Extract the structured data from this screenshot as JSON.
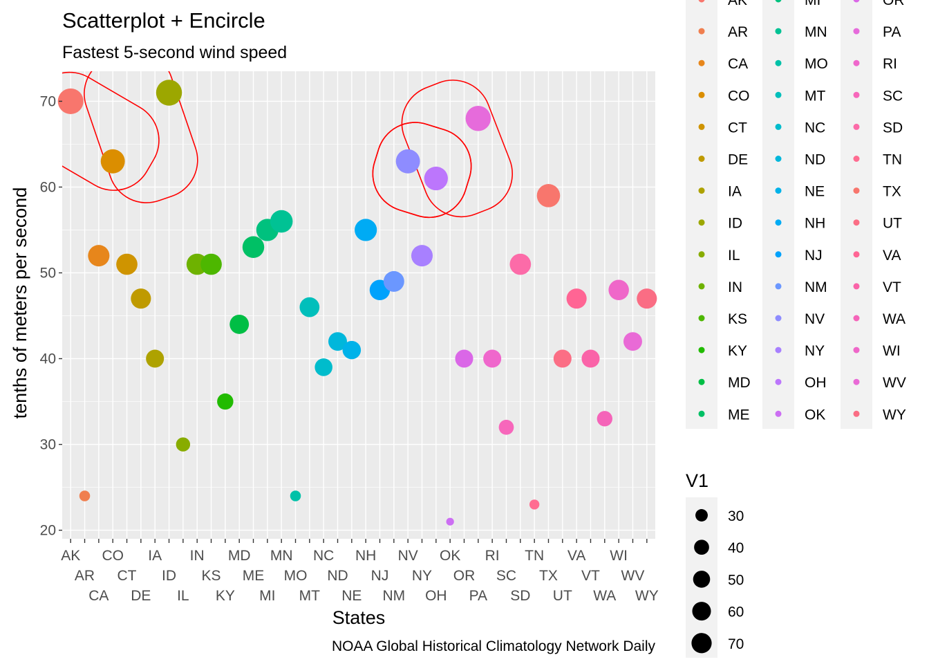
{
  "chart_data": {
    "type": "scatter",
    "title": "Scatterplot + Encircle",
    "subtitle": "Fastest 5-second wind speed",
    "xlabel": "States",
    "ylabel": "tenths of meters per second",
    "caption": "NOAA Global Historical Climatology Network Daily",
    "ylim": [
      19,
      73.5
    ],
    "yticks": [
      20,
      30,
      40,
      50,
      60,
      70
    ],
    "grid": true,
    "categories": [
      "AK",
      "AR",
      "CA",
      "CO",
      "CT",
      "DE",
      "IA",
      "ID",
      "IL",
      "IN",
      "KS",
      "KY",
      "MD",
      "ME",
      "MI",
      "MN",
      "MO",
      "MT",
      "NC",
      "ND",
      "NE",
      "NH",
      "NJ",
      "NM",
      "NV",
      "NY",
      "OH",
      "OK",
      "OR",
      "PA",
      "RI",
      "SC",
      "SD",
      "TN",
      "TX",
      "UT",
      "VA",
      "VT",
      "WA",
      "WI",
      "WV",
      "WY"
    ],
    "colors": [
      "#F8766D",
      "#F07F4F",
      "#E7861B",
      "#DB8E00",
      "#CF9400",
      "#BF9A00",
      "#AEA200",
      "#9CA700",
      "#88AC00",
      "#6EB200",
      "#4DB700",
      "#21BB00",
      "#00BE45",
      "#00C065",
      "#00C17E",
      "#00C294",
      "#00C1A8",
      "#00BFBB",
      "#00BCCC",
      "#00B7DB",
      "#00B2E9",
      "#00ABF4",
      "#00A2FC",
      "#6B97FF",
      "#8E8CFF",
      "#A880FF",
      "#BC76FC",
      "#CC6EF3",
      "#DA67E7",
      "#E66BDB",
      "#EF67CC",
      "#F767BB",
      "#FC6BA8",
      "#FF6C91",
      "#F8766D",
      "#FB6E85",
      "#FF6594",
      "#FA63A8",
      "#F564B9",
      "#EF67C9",
      "#E96AD6",
      "#FA6D84"
    ],
    "points": [
      {
        "state": "AK",
        "y": 70
      },
      {
        "state": "AR",
        "y": 24
      },
      {
        "state": "CA",
        "y": 52
      },
      {
        "state": "CO",
        "y": 63
      },
      {
        "state": "CT",
        "y": 51
      },
      {
        "state": "DE",
        "y": 47
      },
      {
        "state": "IA",
        "y": 40
      },
      {
        "state": "ID",
        "y": 71
      },
      {
        "state": "IL",
        "y": 30
      },
      {
        "state": "IN",
        "y": 51
      },
      {
        "state": "KS",
        "y": 51
      },
      {
        "state": "KY",
        "y": 35
      },
      {
        "state": "MD",
        "y": 44
      },
      {
        "state": "ME",
        "y": 53
      },
      {
        "state": "MI",
        "y": 55
      },
      {
        "state": "MN",
        "y": 56
      },
      {
        "state": "MO",
        "y": 24
      },
      {
        "state": "MT",
        "y": 46
      },
      {
        "state": "NC",
        "y": 39
      },
      {
        "state": "ND",
        "y": 42
      },
      {
        "state": "NE",
        "y": 41
      },
      {
        "state": "NH",
        "y": 55
      },
      {
        "state": "NJ",
        "y": 48
      },
      {
        "state": "NM",
        "y": 49
      },
      {
        "state": "NV",
        "y": 63
      },
      {
        "state": "NY",
        "y": 52
      },
      {
        "state": "OH",
        "y": 61
      },
      {
        "state": "OK",
        "y": 21
      },
      {
        "state": "OR",
        "y": 40
      },
      {
        "state": "PA",
        "y": 68
      },
      {
        "state": "RI",
        "y": 40
      },
      {
        "state": "SC",
        "y": 32
      },
      {
        "state": "SD",
        "y": 51
      },
      {
        "state": "TN",
        "y": 23
      },
      {
        "state": "TX",
        "y": 59
      },
      {
        "state": "UT",
        "y": 40
      },
      {
        "state": "VA",
        "y": 47
      },
      {
        "state": "VT",
        "y": 40
      },
      {
        "state": "WA",
        "y": 33
      },
      {
        "state": "WI",
        "y": 48
      },
      {
        "state": "WV",
        "y": 42
      },
      {
        "state": "WY",
        "y": 47
      }
    ],
    "encircle_groups": [
      [
        "AK",
        "CO"
      ],
      [
        "ID",
        "CO"
      ],
      [
        "NV",
        "OH"
      ],
      [
        "PA",
        "OH"
      ],
      [
        "NV",
        "OH"
      ]
    ],
    "encircle_color": "#FF0000",
    "size_legend": {
      "title": "V1",
      "values": [
        30,
        40,
        50,
        60,
        70
      ]
    },
    "legend_position": "right"
  }
}
